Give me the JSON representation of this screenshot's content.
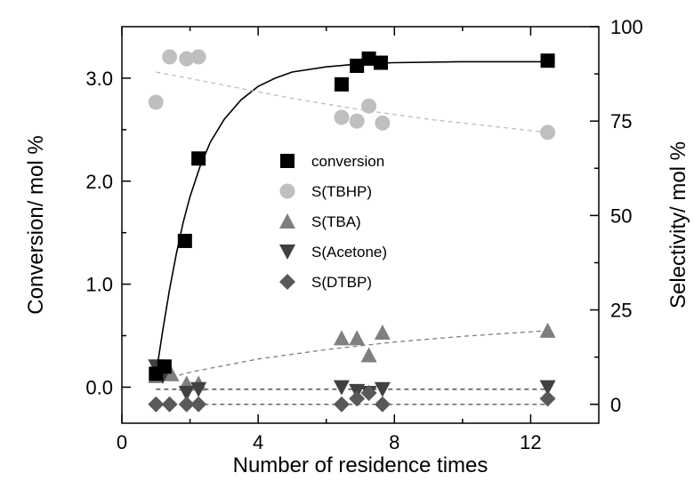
{
  "chart_data": {
    "type": "scatter",
    "xlabel": "Number of residence times",
    "ylabel_left": "Conversion/ mol %",
    "ylabel_right": "Selectivity/ mol %",
    "xlim": [
      0,
      14
    ],
    "ylim_left": [
      -0.35,
      3.5
    ],
    "ylim_right": [
      -5,
      100
    ],
    "x_ticks": [
      "0",
      "4",
      "8",
      "12"
    ],
    "y_left_ticks": [
      "0.0",
      "1.0",
      "2.0",
      "3.0"
    ],
    "y_right_ticks": [
      "0",
      "25",
      "50",
      "75",
      "100"
    ],
    "grid": false,
    "legend_position": "center",
    "series": [
      {
        "name": "conversion",
        "axis": "left",
        "marker": "square",
        "color": "#000000",
        "points": [
          [
            1.0,
            0.13
          ],
          [
            1.25,
            0.2
          ],
          [
            1.85,
            1.42
          ],
          [
            2.25,
            2.22
          ],
          [
            6.45,
            2.94
          ],
          [
            6.9,
            3.12
          ],
          [
            7.25,
            3.19
          ],
          [
            7.6,
            3.15
          ],
          [
            12.5,
            3.17
          ]
        ]
      },
      {
        "name": "S(TBHP)",
        "axis": "right",
        "marker": "circle",
        "color": "#bfbfbf",
        "points": [
          [
            1.0,
            80
          ],
          [
            1.4,
            92
          ],
          [
            1.9,
            91.5
          ],
          [
            2.25,
            92
          ],
          [
            6.45,
            76
          ],
          [
            6.9,
            75
          ],
          [
            7.25,
            79
          ],
          [
            7.65,
            74.5
          ],
          [
            12.5,
            72
          ]
        ]
      },
      {
        "name": "S(TBA)",
        "axis": "right",
        "marker": "triangle-up",
        "color": "#7f7f7f",
        "points": [
          [
            1.0,
            7.5
          ],
          [
            1.45,
            8
          ],
          [
            1.9,
            5.5
          ],
          [
            2.25,
            5.5
          ],
          [
            6.45,
            17.5
          ],
          [
            6.9,
            17.5
          ],
          [
            7.25,
            13
          ],
          [
            7.65,
            19
          ],
          [
            12.5,
            19.5
          ]
        ]
      },
      {
        "name": "S(Acetone)",
        "axis": "right",
        "marker": "triangle-down",
        "color": "#404040",
        "points": [
          [
            1.0,
            10
          ],
          [
            1.2,
            7.5
          ],
          [
            1.9,
            3
          ],
          [
            2.25,
            4
          ],
          [
            6.45,
            4.5
          ],
          [
            6.9,
            3.5
          ],
          [
            7.25,
            3
          ],
          [
            7.65,
            4
          ],
          [
            12.5,
            4.5
          ]
        ]
      },
      {
        "name": "S(DTBP)",
        "axis": "right",
        "marker": "diamond",
        "color": "#595959",
        "points": [
          [
            1.0,
            0
          ],
          [
            1.4,
            0
          ],
          [
            1.9,
            0
          ],
          [
            2.25,
            0
          ],
          [
            6.45,
            0
          ],
          [
            6.9,
            1.5
          ],
          [
            7.25,
            3
          ],
          [
            7.65,
            0
          ],
          [
            12.5,
            1.5
          ]
        ]
      }
    ],
    "fits": [
      {
        "series": "conversion",
        "style": "solid",
        "color": "#000000",
        "axis": "left",
        "form": "asymptotic",
        "points": [
          [
            1.0,
            0.12
          ],
          [
            1.2,
            0.55
          ],
          [
            1.4,
            0.95
          ],
          [
            1.6,
            1.3
          ],
          [
            1.8,
            1.6
          ],
          [
            2.0,
            1.85
          ],
          [
            2.3,
            2.15
          ],
          [
            2.6,
            2.38
          ],
          [
            3.0,
            2.6
          ],
          [
            3.5,
            2.79
          ],
          [
            4.0,
            2.92
          ],
          [
            4.5,
            3.0
          ],
          [
            5.0,
            3.06
          ],
          [
            6.0,
            3.11
          ],
          [
            7.0,
            3.14
          ],
          [
            8.0,
            3.15
          ],
          [
            10.0,
            3.16
          ],
          [
            12.5,
            3.16
          ]
        ]
      },
      {
        "series": "S(TBHP)",
        "style": "dashed",
        "color": "#bfbfbf",
        "axis": "right",
        "points": [
          [
            1.0,
            88
          ],
          [
            3.0,
            84.5
          ],
          [
            5.0,
            81
          ],
          [
            7.0,
            78
          ],
          [
            9.0,
            75.5
          ],
          [
            11.0,
            73.5
          ],
          [
            12.5,
            72
          ]
        ]
      },
      {
        "series": "S(TBA)",
        "style": "dashed",
        "color": "#7f7f7f",
        "axis": "right",
        "points": [
          [
            1.0,
            6
          ],
          [
            2.0,
            8.5
          ],
          [
            4.0,
            12
          ],
          [
            6.0,
            14.5
          ],
          [
            8.0,
            16.5
          ],
          [
            10.0,
            18
          ],
          [
            12.5,
            19.5
          ]
        ]
      },
      {
        "series": "S(Acetone)",
        "style": "dashed",
        "color": "#404040",
        "axis": "right",
        "points": [
          [
            1.0,
            4
          ],
          [
            12.5,
            4
          ]
        ]
      },
      {
        "series": "S(DTBP)",
        "style": "dashed",
        "color": "#595959",
        "axis": "right",
        "points": [
          [
            1.0,
            0
          ],
          [
            12.5,
            0
          ]
        ]
      }
    ]
  }
}
